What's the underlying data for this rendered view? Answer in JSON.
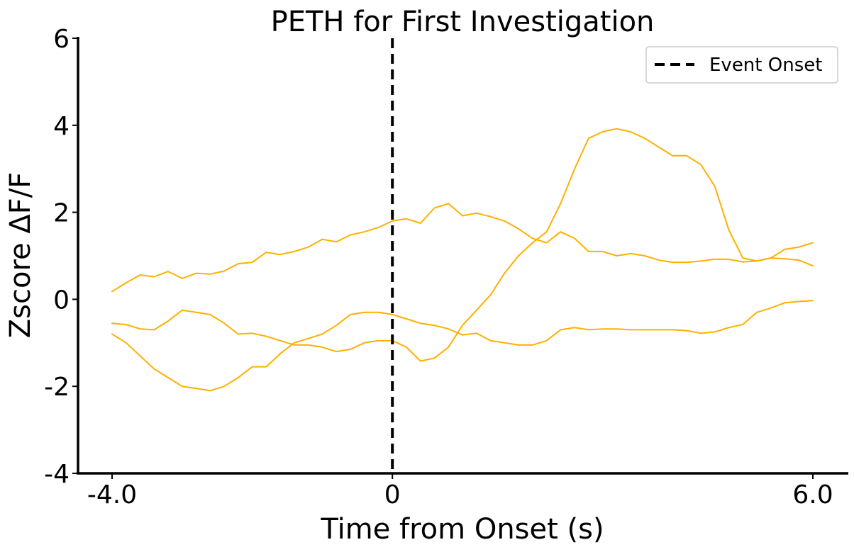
{
  "chart_data": {
    "type": "line",
    "title": "PETH for First Investigation",
    "xlabel": "Time from Onset (s)",
    "ylabel": "Zscore ΔF/F",
    "xlim": [
      -4.0,
      6.0
    ],
    "ylim": [
      -4,
      6
    ],
    "x_ticks": [
      -4.0,
      0,
      6.0
    ],
    "x_tick_labels": [
      "-4.0",
      "0",
      "6.0"
    ],
    "y_ticks": [
      -4,
      -2,
      0,
      2,
      4,
      6
    ],
    "y_tick_labels": [
      "-4",
      "-2",
      "0",
      "2",
      "4",
      "6"
    ],
    "grid": false,
    "legend": {
      "position": "top-right",
      "entries": [
        {
          "label": "Event Onset",
          "style": "dashed",
          "color": "#000000"
        }
      ]
    },
    "event_line": {
      "x": 0,
      "label": "Event Onset",
      "color": "#000000"
    },
    "series_color": "#FFB000",
    "series": [
      {
        "x": [
          -4.0,
          -3.8,
          -3.6,
          -3.4,
          -3.2,
          -3.0,
          -2.8,
          -2.6,
          -2.4,
          -2.2,
          -2.0,
          -1.8,
          -1.6,
          -1.4,
          -1.2,
          -1.0,
          -0.8,
          -0.6,
          -0.4,
          -0.2,
          0.0,
          0.2,
          0.4,
          0.6,
          0.8,
          1.0,
          1.2,
          1.4,
          1.6,
          1.8,
          2.0,
          2.2,
          2.4,
          2.6,
          2.8,
          3.0,
          3.2,
          3.4,
          3.6,
          3.8,
          4.0,
          4.2,
          4.4,
          4.6,
          4.8,
          5.0,
          5.2,
          5.4,
          5.6,
          5.8,
          6.0
        ],
        "values": [
          0.18,
          0.38,
          0.56,
          0.52,
          0.64,
          0.48,
          0.6,
          0.58,
          0.65,
          0.82,
          0.85,
          1.08,
          1.03,
          1.1,
          1.2,
          1.38,
          1.32,
          1.48,
          1.55,
          1.65,
          1.8,
          1.85,
          1.75,
          2.1,
          2.2,
          1.92,
          1.98,
          1.9,
          1.8,
          1.62,
          1.4,
          1.3,
          1.55,
          1.4,
          1.1,
          1.1,
          1.0,
          1.05,
          1.0,
          0.9,
          0.85,
          0.85,
          0.88,
          0.92,
          0.92,
          0.86,
          0.88,
          0.95,
          0.93,
          0.9,
          0.77
        ]
      },
      {
        "x": [
          -4.0,
          -3.8,
          -3.6,
          -3.4,
          -3.2,
          -3.0,
          -2.8,
          -2.6,
          -2.4,
          -2.2,
          -2.0,
          -1.8,
          -1.6,
          -1.4,
          -1.2,
          -1.0,
          -0.8,
          -0.6,
          -0.4,
          -0.2,
          0.0,
          0.2,
          0.4,
          0.6,
          0.8,
          1.0,
          1.2,
          1.4,
          1.6,
          1.8,
          2.0,
          2.2,
          2.4,
          2.6,
          2.8,
          3.0,
          3.2,
          3.4,
          3.6,
          3.8,
          4.0,
          4.2,
          4.4,
          4.6,
          4.8,
          5.0,
          5.2,
          5.4,
          5.6,
          5.8,
          6.0
        ],
        "values": [
          -0.55,
          -0.58,
          -0.68,
          -0.7,
          -0.5,
          -0.25,
          -0.3,
          -0.35,
          -0.55,
          -0.8,
          -0.78,
          -0.85,
          -0.95,
          -1.05,
          -1.05,
          -1.1,
          -1.2,
          -1.15,
          -1.0,
          -0.95,
          -0.95,
          -1.1,
          -1.42,
          -1.35,
          -1.1,
          -0.6,
          -0.25,
          0.1,
          0.6,
          1.0,
          1.3,
          1.55,
          2.2,
          3.0,
          3.7,
          3.85,
          3.92,
          3.85,
          3.7,
          3.5,
          3.3,
          3.3,
          3.1,
          2.6,
          1.6,
          0.95,
          0.88,
          0.95,
          1.15,
          1.2,
          1.3
        ]
      },
      {
        "x": [
          -4.0,
          -3.8,
          -3.6,
          -3.4,
          -3.2,
          -3.0,
          -2.8,
          -2.6,
          -2.4,
          -2.2,
          -2.0,
          -1.8,
          -1.6,
          -1.4,
          -1.2,
          -1.0,
          -0.8,
          -0.6,
          -0.4,
          -0.2,
          0.0,
          0.2,
          0.4,
          0.6,
          0.8,
          1.0,
          1.2,
          1.4,
          1.6,
          1.8,
          2.0,
          2.2,
          2.4,
          2.6,
          2.8,
          3.0,
          3.2,
          3.4,
          3.6,
          3.8,
          4.0,
          4.2,
          4.4,
          4.6,
          4.8,
          5.0,
          5.2,
          5.4,
          5.6,
          5.8,
          6.0
        ],
        "values": [
          -0.8,
          -1.0,
          -1.3,
          -1.6,
          -1.8,
          -2.0,
          -2.05,
          -2.1,
          -2.0,
          -1.8,
          -1.55,
          -1.55,
          -1.25,
          -1.0,
          -0.9,
          -0.8,
          -0.6,
          -0.35,
          -0.3,
          -0.3,
          -0.35,
          -0.45,
          -0.55,
          -0.6,
          -0.68,
          -0.82,
          -0.78,
          -0.95,
          -1.0,
          -1.05,
          -1.05,
          -0.95,
          -0.7,
          -0.65,
          -0.7,
          -0.68,
          -0.68,
          -0.7,
          -0.7,
          -0.7,
          -0.7,
          -0.72,
          -0.78,
          -0.75,
          -0.65,
          -0.58,
          -0.3,
          -0.2,
          -0.08,
          -0.05,
          -0.03
        ]
      }
    ]
  }
}
